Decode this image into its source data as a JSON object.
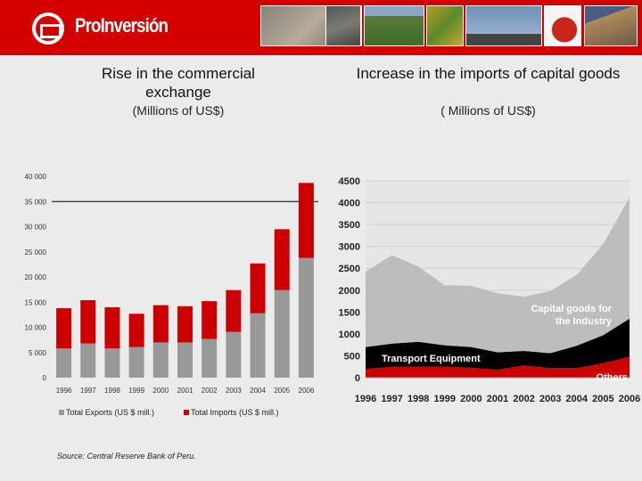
{
  "header": {
    "brand": "ProInversión",
    "brand_color": "#d40000"
  },
  "photos": [
    "stone-wall",
    "mine",
    "farm-field",
    "gold-artifacts",
    "airplane",
    "red-peppers",
    "highway"
  ],
  "source": "Source: Central Reserve Bank of Peru.",
  "chart_data": [
    {
      "type": "bar",
      "stacked": true,
      "title": "Rise in the commercial exchange",
      "subtitle": "(Millions of US$)",
      "categories": [
        "1996",
        "1997",
        "1998",
        "1999",
        "2000",
        "2001",
        "2002",
        "2003",
        "2004",
        "2005",
        "2006"
      ],
      "series": [
        {
          "name": "Total Exports (US $ mill.)",
          "color": "#999999",
          "values": [
            5800,
            6800,
            5800,
            6100,
            7000,
            7000,
            7700,
            9100,
            12800,
            17400,
            23800
          ]
        },
        {
          "name": "Total Imports (US $ mill.)",
          "color": "#cc0000",
          "values": [
            8000,
            8600,
            8200,
            6600,
            7400,
            7200,
            7500,
            8300,
            9900,
            12100,
            14900
          ]
        }
      ],
      "yticks": [
        "0",
        "5 000",
        "10 000",
        "15 000",
        "20 000",
        "25 000",
        "30 000",
        "35 000",
        "40 000"
      ],
      "ylim": [
        0,
        40000
      ],
      "reference_line": 35000,
      "legend": "bottom"
    },
    {
      "type": "area",
      "stacked": true,
      "title": "Increase in the imports of capital goods",
      "subtitle": "( Millions of US$)",
      "categories": [
        "1996",
        "1997",
        "1998",
        "1999",
        "2000",
        "2001",
        "2002",
        "2003",
        "2004",
        "2005",
        "2006"
      ],
      "series": [
        {
          "name": "Others",
          "color": "#cc0000",
          "values": [
            200,
            250,
            250,
            250,
            230,
            180,
            280,
            220,
            220,
            330,
            480
          ]
        },
        {
          "name": "Transport Equipment",
          "color": "#000000",
          "values": [
            500,
            530,
            570,
            490,
            470,
            400,
            330,
            340,
            510,
            640,
            870
          ]
        },
        {
          "name": "Capital goods for the Industry",
          "color": "#bdbdbd",
          "values": [
            1720,
            2020,
            1720,
            1370,
            1400,
            1350,
            1240,
            1420,
            1620,
            2080,
            2770
          ]
        }
      ],
      "yticks": [
        "0",
        "500",
        "1000",
        "1500",
        "2000",
        "2500",
        "3000",
        "3500",
        "4000",
        "4500"
      ],
      "ylim": [
        0,
        4500
      ],
      "grid": true
    }
  ]
}
